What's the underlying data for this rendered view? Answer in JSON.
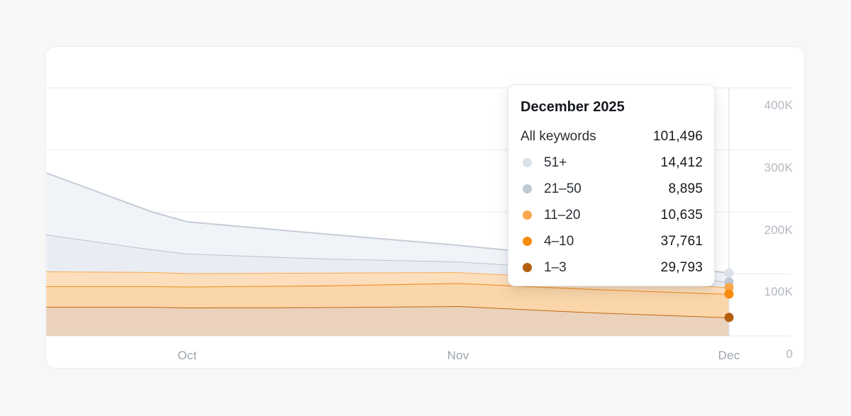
{
  "page": {
    "background": "#f7f7f8"
  },
  "card": {
    "background": "#ffffff",
    "border_color": "#ededef"
  },
  "chart_data": {
    "type": "area",
    "stacked": true,
    "title": "",
    "xlabel": "",
    "ylabel": "",
    "legend_position": "none",
    "grid": true,
    "x_tick_labels": [
      "Oct",
      "Nov",
      "Dec"
    ],
    "y_ticks": [
      {
        "label": "400K",
        "value": 400000
      },
      {
        "label": "300K",
        "value": 300000
      },
      {
        "label": "200K",
        "value": 200000
      },
      {
        "label": "100K",
        "value": 100000
      },
      {
        "label": "0",
        "value": 0
      }
    ],
    "ylim": [
      0,
      400000
    ],
    "x_samples_months_from_oct": [
      -0.52,
      -0.13,
      0,
      0.5,
      1,
      1.5,
      2
    ],
    "x_samples_note": "approximate dates mid-Sep through Dec 1; values for Dec are exact from tooltip, others estimated from pixels",
    "series_order": "bottom to top of stack",
    "series": [
      {
        "name": "1–3",
        "line_color": "#c2690f",
        "dot_color": "#b35f0e",
        "fill_color": "#ead2bc",
        "values": [
          46900,
          46900,
          45700,
          46300,
          48000,
          37700,
          29793
        ]
      },
      {
        "name": "4–10",
        "line_color": "#ef8b16",
        "dot_color": "#f68b0e",
        "fill_color": "#fcd6ab",
        "values": [
          33100,
          33100,
          33700,
          34900,
          37100,
          37700,
          37761
        ]
      },
      {
        "name": "11–20",
        "line_color": "#f7a84e",
        "dot_color": "#faa64b",
        "fill_color": "#fcdebc",
        "values": [
          24000,
          23000,
          21700,
          20600,
          17700,
          16600,
          10635
        ]
      },
      {
        "name": "21–50",
        "line_color": "#b9c3ce",
        "dot_color": "#bec9d3",
        "fill_color": "#e9edf3",
        "values": [
          59400,
          36400,
          31500,
          22900,
          17100,
          14300,
          8895
        ]
      },
      {
        "name": "51+",
        "line_color": "#c6cdd6",
        "dot_color": "#dbe1e8",
        "fill_color": "#f0f3f7",
        "values": [
          99400,
          60600,
          51400,
          40000,
          26300,
          18300,
          14412
        ]
      }
    ],
    "highlighted_x_label": "Dec",
    "grid_color": "#ecedf0",
    "highlight_line_color": "#e3e5e9"
  },
  "tooltip": {
    "title": "December 2025",
    "total_label": "All keywords",
    "total_value": "101,496",
    "rows": [
      {
        "label": "51+",
        "value": "14,412",
        "color": "#dbe1e8"
      },
      {
        "label": "21–50",
        "value": "8,895",
        "color": "#bec9d3"
      },
      {
        "label": "11–20",
        "value": "10,635",
        "color": "#faa64b"
      },
      {
        "label": "4–10",
        "value": "37,761",
        "color": "#f68b0e"
      },
      {
        "label": "1–3",
        "value": "29,793",
        "color": "#b35f0e"
      }
    ]
  }
}
